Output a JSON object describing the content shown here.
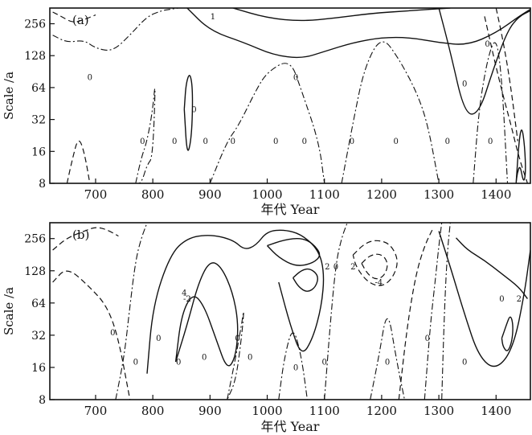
{
  "chart_data": [
    {
      "type": "contour",
      "panel_label": "(a)",
      "xlabel": "年代 Year",
      "ylabel": "Scale /a",
      "xlim": [
        620,
        1460
      ],
      "x_scale": "linear",
      "xticks": [
        700,
        800,
        900,
        1000,
        1100,
        1200,
        1300,
        1400
      ],
      "ylim": [
        8,
        360
      ],
      "y_scale": "log2",
      "yticks": [
        8,
        16,
        32,
        64,
        128,
        256
      ],
      "contour_levels": [
        {
          "style": "solid",
          "sign": "positive"
        },
        {
          "style": "dash-dot",
          "sign": "zero"
        },
        {
          "style": "dashed",
          "sign": "negative"
        }
      ],
      "contour_labels": [
        {
          "text": "0",
          "x": 782,
          "y": 20
        },
        {
          "text": "0",
          "x": 838,
          "y": 20
        },
        {
          "text": "0",
          "x": 872,
          "y": 40
        },
        {
          "text": "0",
          "x": 892,
          "y": 20
        },
        {
          "text": "0",
          "x": 940,
          "y": 20
        },
        {
          "text": "0",
          "x": 1015,
          "y": 20
        },
        {
          "text": "0",
          "x": 1050,
          "y": 80
        },
        {
          "text": "0",
          "x": 1065,
          "y": 20
        },
        {
          "text": "0",
          "x": 1148,
          "y": 20
        },
        {
          "text": "0",
          "x": 1225,
          "y": 20
        },
        {
          "text": "0",
          "x": 1315,
          "y": 20
        },
        {
          "text": "0",
          "x": 1345,
          "y": 70
        },
        {
          "text": "0",
          "x": 1385,
          "y": 165
        },
        {
          "text": "0",
          "x": 1390,
          "y": 20
        },
        {
          "text": "0",
          "x": 690,
          "y": 80
        },
        {
          "text": "1",
          "x": 905,
          "y": 300
        }
      ],
      "contours": [
        {
          "style": "solid",
          "x": [
            860,
            900,
            960,
            1010,
            1060,
            1100,
            1150,
            1200,
            1250,
            1300,
            1350,
            1400,
            1440,
            1460
          ],
          "y": [
            360,
            220,
            170,
            130,
            120,
            140,
            170,
            190,
            190,
            170,
            160,
            210,
            300,
            350
          ]
        },
        {
          "style": "solid",
          "x": [
            940,
            1000,
            1060,
            1120,
            1180,
            1250,
            1320
          ],
          "y": [
            360,
            290,
            270,
            290,
            320,
            340,
            360
          ]
        },
        {
          "style": "solid",
          "x": [
            1300,
            1320,
            1345,
            1370,
            1395,
            1420,
            1440,
            1460
          ],
          "y": [
            360,
            140,
            36,
            36,
            95,
            220,
            300,
            340
          ]
        },
        {
          "style": "solid",
          "x": [
            855,
            858,
            865,
            870,
            868,
            860,
            855
          ],
          "y": [
            40,
            70,
            90,
            60,
            22,
            14,
            40
          ]
        },
        {
          "style": "solid",
          "x": [
            1435,
            1440,
            1445,
            1450,
            1452,
            1448,
            1442,
            1437,
            1435
          ],
          "y": [
            8,
            20,
            28,
            18,
            10,
            8,
            12,
            10,
            8
          ]
        },
        {
          "style": "dash-dot",
          "x": [
            625,
            650,
            680,
            700,
            730,
            760,
            790,
            815,
            830,
            845
          ],
          "y": [
            200,
            170,
            180,
            150,
            140,
            200,
            300,
            340,
            350,
            360
          ]
        },
        {
          "style": "dash-dot",
          "x": [
            770,
            780,
            790,
            800,
            805,
            800,
            790,
            780,
            770
          ],
          "y": [
            8,
            14,
            20,
            40,
            80,
            14,
            12,
            8,
            8
          ]
        },
        {
          "style": "dash-dot",
          "x": [
            900,
            930,
            950,
            980,
            1000,
            1040,
            1060,
            1090,
            1100
          ],
          "y": [
            8,
            20,
            28,
            60,
            90,
            120,
            60,
            20,
            8
          ]
        },
        {
          "style": "dash-dot",
          "x": [
            1130,
            1150,
            1170,
            1200,
            1230,
            1260,
            1280,
            1300
          ],
          "y": [
            8,
            30,
            100,
            200,
            120,
            60,
            30,
            8
          ]
        },
        {
          "style": "dash-dot",
          "x": [
            1360,
            1370,
            1385,
            1400,
            1410,
            1420
          ],
          "y": [
            8,
            40,
            120,
            200,
            80,
            8
          ]
        },
        {
          "style": "dashed",
          "x": [
            625,
            640,
            660,
            680,
            700
          ],
          "y": [
            330,
            300,
            260,
            280,
            310
          ]
        },
        {
          "style": "dashed",
          "x": [
            650,
            660,
            670,
            680,
            690
          ],
          "y": [
            8,
            14,
            22,
            16,
            8
          ]
        },
        {
          "style": "dashed",
          "x": [
            1380,
            1395,
            1410,
            1425,
            1440,
            1455
          ],
          "y": [
            300,
            130,
            60,
            30,
            14,
            8
          ]
        },
        {
          "style": "dashed",
          "x": [
            1400,
            1412,
            1425,
            1438
          ],
          "y": [
            360,
            180,
            70,
            20
          ]
        }
      ]
    },
    {
      "type": "contour",
      "panel_label": "(b)",
      "xlabel": "年代 Year",
      "ylabel": "Scale /a",
      "xlim": [
        620,
        1460
      ],
      "x_scale": "linear",
      "xticks": [
        700,
        800,
        900,
        1000,
        1100,
        1200,
        1300,
        1400
      ],
      "ylim": [
        8,
        360
      ],
      "y_scale": "log2",
      "yticks": [
        8,
        16,
        32,
        64,
        128,
        256
      ],
      "contour_levels": [
        {
          "style": "solid",
          "sign": "positive"
        },
        {
          "style": "dash-dot",
          "sign": "zero"
        },
        {
          "style": "dashed",
          "sign": "negative"
        }
      ],
      "contour_labels": [
        {
          "text": "0",
          "x": 770,
          "y": 18
        },
        {
          "text": "0",
          "x": 810,
          "y": 30
        },
        {
          "text": "0",
          "x": 845,
          "y": 18
        },
        {
          "text": "0",
          "x": 890,
          "y": 20
        },
        {
          "text": "0",
          "x": 948,
          "y": 30
        },
        {
          "text": "0",
          "x": 970,
          "y": 20
        },
        {
          "text": "0",
          "x": 1050,
          "y": 16
        },
        {
          "text": "0",
          "x": 1100,
          "y": 18
        },
        {
          "text": "0",
          "x": 1120,
          "y": 140
        },
        {
          "text": "0",
          "x": 1210,
          "y": 18
        },
        {
          "text": "0",
          "x": 1280,
          "y": 30
        },
        {
          "text": "0",
          "x": 1345,
          "y": 18
        },
        {
          "text": "0",
          "x": 1410,
          "y": 70
        },
        {
          "text": "0",
          "x": 730,
          "y": 34
        },
        {
          "text": "2",
          "x": 1105,
          "y": 140
        },
        {
          "text": "2",
          "x": 1150,
          "y": 140
        },
        {
          "text": "2",
          "x": 1440,
          "y": 70
        },
        {
          "text": "4",
          "x": 855,
          "y": 80
        },
        {
          "text": "-4",
          "x": 1195,
          "y": 100
        },
        {
          "text": "-2",
          "x": 860,
          "y": 70
        }
      ],
      "contours": [
        {
          "style": "solid",
          "x": [
            790,
            800,
            830,
            860,
            900,
            940,
            960,
            980,
            1000,
            1030,
            1060,
            1090,
            1100,
            1095,
            1080,
            1060,
            1040,
            1020
          ],
          "y": [
            14,
            60,
            180,
            260,
            280,
            250,
            200,
            220,
            300,
            310,
            280,
            200,
            120,
            60,
            30,
            20,
            40,
            100
          ]
        },
        {
          "style": "solid",
          "x": [
            840,
            860,
            880,
            900,
            920,
            940,
            950,
            945,
            930,
            910,
            890,
            870,
            850,
            840
          ],
          "y": [
            18,
            40,
            100,
            160,
            140,
            80,
            40,
            20,
            15,
            30,
            60,
            80,
            50,
            18
          ]
        },
        {
          "style": "solid",
          "x": [
            1000,
            1030,
            1060,
            1080,
            1095,
            1080,
            1050,
            1020,
            1000
          ],
          "y": [
            220,
            250,
            260,
            230,
            180,
            150,
            140,
            170,
            220
          ]
        },
        {
          "style": "solid",
          "x": [
            1045,
            1060,
            1075,
            1090,
            1085,
            1070,
            1055,
            1045
          ],
          "y": [
            110,
            130,
            135,
            115,
            90,
            80,
            90,
            110
          ]
        },
        {
          "style": "solid",
          "x": [
            1300,
            1320,
            1345,
            1370,
            1400,
            1430,
            1450,
            1460
          ],
          "y": [
            300,
            140,
            50,
            20,
            15,
            24,
            80,
            200
          ]
        },
        {
          "style": "solid",
          "x": [
            1330,
            1350,
            1380,
            1410,
            1440,
            1455
          ],
          "y": [
            260,
            200,
            160,
            120,
            90,
            70
          ]
        },
        {
          "style": "solid",
          "x": [
            1410,
            1418,
            1425,
            1430,
            1428,
            1420,
            1412,
            1410
          ],
          "y": [
            30,
            40,
            50,
            40,
            28,
            22,
            25,
            30
          ]
        },
        {
          "style": "dash-dot",
          "x": [
            735,
            750,
            760,
            770,
            780,
            790
          ],
          "y": [
            8,
            20,
            60,
            160,
            260,
            360
          ]
        },
        {
          "style": "dash-dot",
          "x": [
            1100,
            1110,
            1120,
            1130,
            1140
          ],
          "y": [
            8,
            40,
            150,
            260,
            360
          ]
        },
        {
          "style": "dash-dot",
          "x": [
            1275,
            1285,
            1295,
            1300,
            1305
          ],
          "y": [
            8,
            40,
            120,
            220,
            360
          ]
        },
        {
          "style": "dash-dot",
          "x": [
            1305,
            1310,
            1315,
            1320
          ],
          "y": [
            8,
            60,
            200,
            360
          ]
        },
        {
          "style": "dash-dot",
          "x": [
            930,
            945,
            955,
            960,
            955,
            945,
            930
          ],
          "y": [
            8,
            20,
            40,
            60,
            30,
            12,
            8
          ]
        },
        {
          "style": "dash-dot",
          "x": [
            1020,
            1030,
            1045,
            1060,
            1070
          ],
          "y": [
            8,
            20,
            40,
            20,
            8
          ]
        },
        {
          "style": "dash-dot",
          "x": [
            1180,
            1195,
            1210,
            1225,
            1240
          ],
          "y": [
            8,
            20,
            60,
            20,
            8
          ]
        },
        {
          "style": "dashed",
          "x": [
            625,
            650,
            680,
            700,
            720,
            740
          ],
          "y": [
            200,
            260,
            300,
            330,
            310,
            270
          ]
        },
        {
          "style": "dashed",
          "x": [
            625,
            650,
            690,
            720,
            740,
            760
          ],
          "y": [
            100,
            140,
            90,
            60,
            30,
            8
          ]
        },
        {
          "style": "dashed",
          "x": [
            1150,
            1170,
            1190,
            1215,
            1230,
            1220,
            1200,
            1175,
            1155,
            1150
          ],
          "y": [
            180,
            230,
            250,
            230,
            160,
            110,
            90,
            100,
            140,
            180
          ]
        },
        {
          "style": "dashed",
          "x": [
            1165,
            1180,
            1200,
            1212,
            1205,
            1190,
            1175,
            1165
          ],
          "y": [
            150,
            180,
            185,
            150,
            115,
            105,
            120,
            150
          ]
        },
        {
          "style": "dashed",
          "x": [
            1230,
            1245,
            1260,
            1275,
            1290
          ],
          "y": [
            8,
            40,
            120,
            220,
            320
          ]
        }
      ]
    }
  ]
}
